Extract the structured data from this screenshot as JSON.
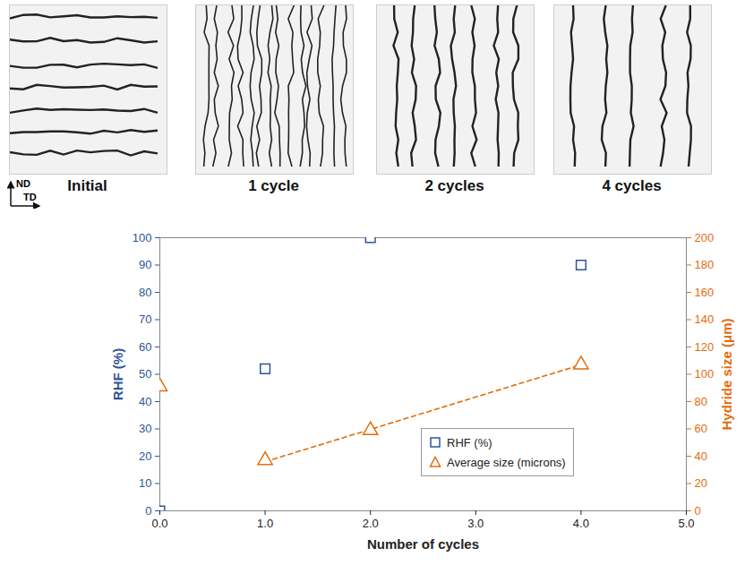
{
  "chart_data": {
    "type": "scatter",
    "panel_labels": [
      "Initial",
      "1 cycle",
      "2 cycles",
      "4 cycles"
    ],
    "direction_labels": {
      "vertical": "ND",
      "horizontal": "TD"
    },
    "x_label": "Number of cycles",
    "y_label": "RHF (%)",
    "y2_label": "Hydride size (μm)",
    "xlim": [
      0,
      5
    ],
    "xticks": [
      0,
      1,
      2,
      3,
      4,
      5
    ],
    "ylim": [
      0,
      100
    ],
    "yticks": [
      0,
      10,
      20,
      30,
      40,
      50,
      60,
      70,
      80,
      90,
      100
    ],
    "y2lim": [
      0,
      200
    ],
    "y2ticks": [
      0,
      20,
      40,
      60,
      80,
      100,
      120,
      140,
      160,
      180,
      200
    ],
    "legend": "lower right",
    "series": [
      {
        "name": "RHF (%)",
        "color": "#2F5597",
        "marker": "square",
        "x": [
          0,
          1,
          2,
          4
        ],
        "values": [
          0,
          52,
          100,
          90
        ]
      },
      {
        "name": "Average size (microns)",
        "color": "#E46C0A",
        "marker": "triangle",
        "axis": "y2",
        "x": [
          0,
          1,
          2,
          4
        ],
        "values": [
          91,
          37,
          59,
          107
        ],
        "trend": {
          "x": [
            1,
            4
          ],
          "values": [
            36,
            107
          ],
          "line_style": "dashed"
        }
      }
    ]
  }
}
